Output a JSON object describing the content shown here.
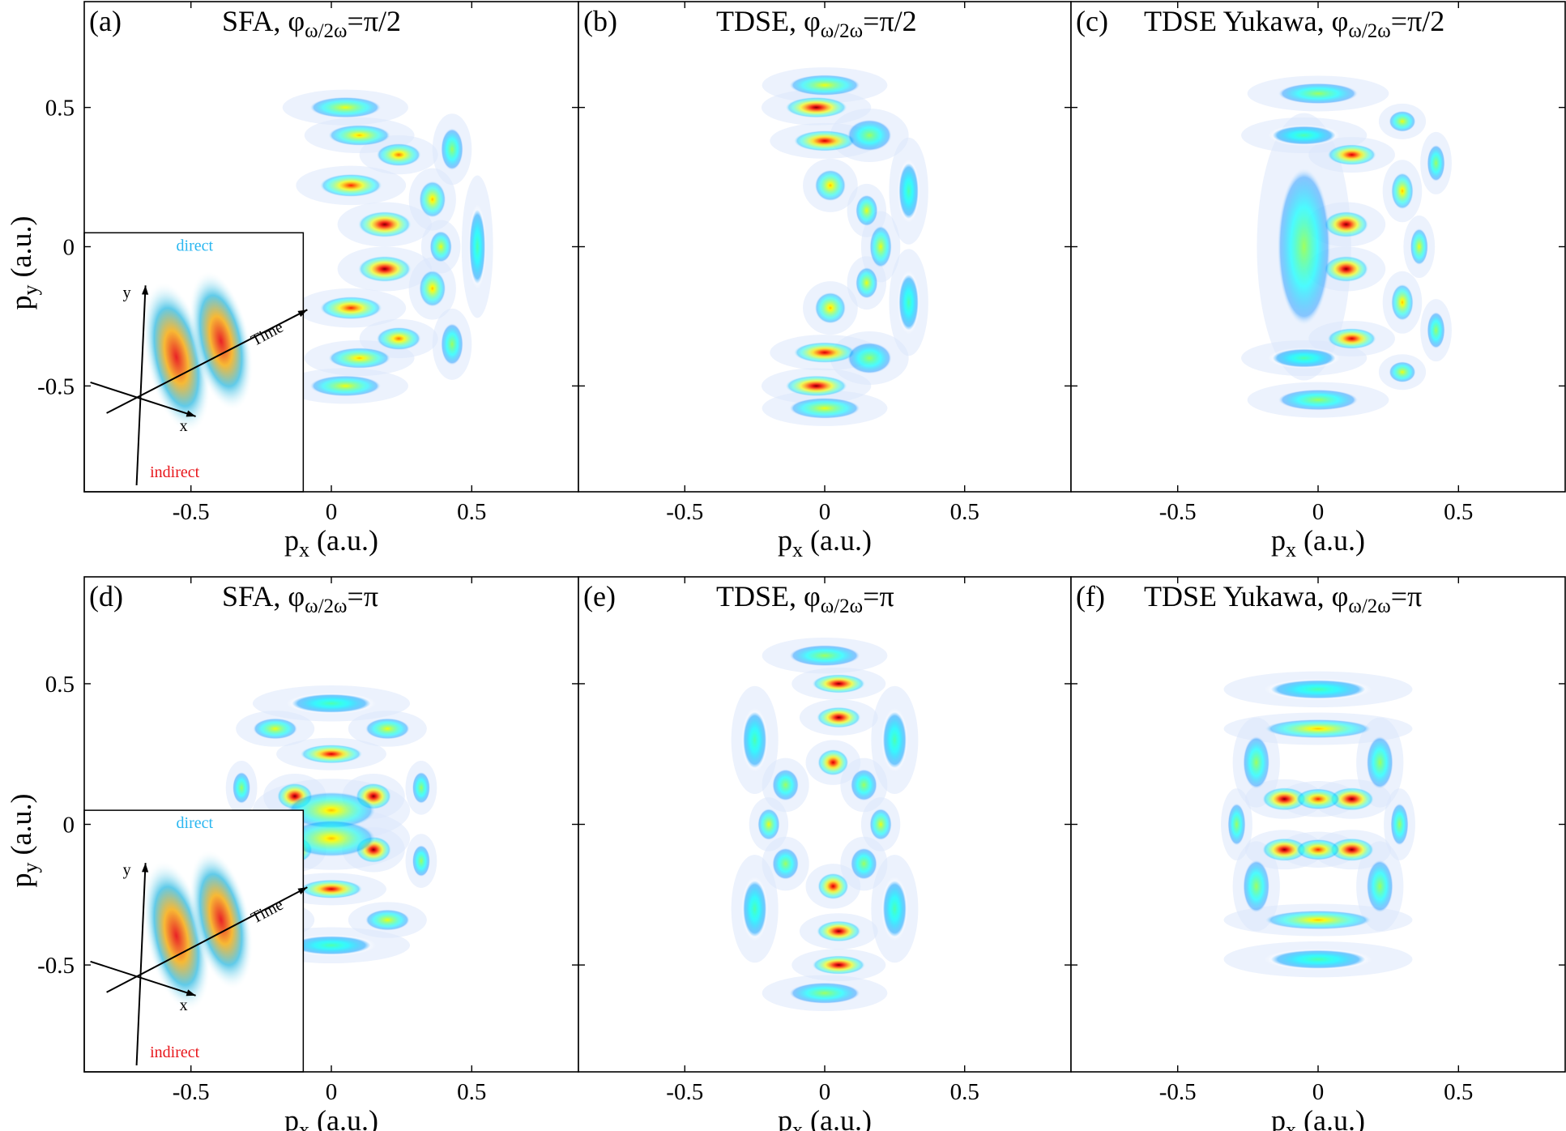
{
  "chart_data": {
    "type": "heatmap",
    "colormap": "jet",
    "grid": false,
    "xlim": [
      -0.88,
      0.88
    ],
    "ylim": [
      -0.88,
      0.88
    ],
    "x_ticks": [
      -0.5,
      0,
      0.5
    ],
    "y_ticks": [
      -0.5,
      0,
      0.5
    ],
    "x_tick_labels": [
      "-0.5",
      "0",
      "0.5"
    ],
    "y_tick_labels": [
      "-0.5",
      "0",
      "0.5"
    ],
    "xlabel_main": "p",
    "xlabel_sub": "x",
    "xlabel_unit": " (a.u.)",
    "ylabel_main": "p",
    "ylabel_sub": "y",
    "ylabel_unit": " (a.u.)",
    "inset": {
      "direct": "direct",
      "indirect": "indirect",
      "time": "Time",
      "x": "x",
      "y": "y",
      "direct_color": "#29b6f0",
      "indirect_color": "#e8161b"
    },
    "panels": [
      {
        "label": "(a)",
        "method": "SFA",
        "phase": "π/2",
        "inset": true,
        "blobs": [
          {
            "x": 0.19,
            "y": 0.08,
            "v": 1.0,
            "sx": 0.06,
            "sy": 0.025
          },
          {
            "x": 0.19,
            "y": -0.08,
            "v": 1.0,
            "sx": 0.06,
            "sy": 0.025
          },
          {
            "x": 0.07,
            "y": 0.22,
            "v": 0.75,
            "sx": 0.07,
            "sy": 0.022
          },
          {
            "x": 0.07,
            "y": -0.22,
            "v": 0.75,
            "sx": 0.07,
            "sy": 0.022
          },
          {
            "x": 0.24,
            "y": 0.33,
            "v": 0.7,
            "sx": 0.05,
            "sy": 0.022
          },
          {
            "x": 0.24,
            "y": -0.33,
            "v": 0.7,
            "sx": 0.05,
            "sy": 0.022
          },
          {
            "x": 0.36,
            "y": 0.17,
            "v": 0.55,
            "sx": 0.03,
            "sy": 0.035
          },
          {
            "x": 0.36,
            "y": -0.15,
            "v": 0.55,
            "sx": 0.03,
            "sy": 0.035
          },
          {
            "x": 0.39,
            "y": 0.0,
            "v": 0.45,
            "sx": 0.025,
            "sy": 0.03
          },
          {
            "x": 0.1,
            "y": 0.4,
            "v": 0.55,
            "sx": 0.07,
            "sy": 0.02
          },
          {
            "x": 0.1,
            "y": -0.4,
            "v": 0.55,
            "sx": 0.07,
            "sy": 0.02
          },
          {
            "x": 0.05,
            "y": 0.5,
            "v": 0.45,
            "sx": 0.08,
            "sy": 0.02
          },
          {
            "x": 0.05,
            "y": -0.5,
            "v": 0.45,
            "sx": 0.08,
            "sy": 0.02
          },
          {
            "x": 0.43,
            "y": 0.35,
            "v": 0.35,
            "sx": 0.025,
            "sy": 0.04
          },
          {
            "x": 0.43,
            "y": -0.35,
            "v": 0.35,
            "sx": 0.025,
            "sy": 0.04
          },
          {
            "x": 0.52,
            "y": 0.0,
            "v": 0.25,
            "sx": 0.02,
            "sy": 0.08
          }
        ]
      },
      {
        "label": "(b)",
        "method": "TDSE",
        "phase": "π/2",
        "inset": false,
        "blobs": [
          {
            "x": -0.03,
            "y": 0.5,
            "v": 1.0,
            "sx": 0.07,
            "sy": 0.02
          },
          {
            "x": -0.03,
            "y": -0.5,
            "v": 1.0,
            "sx": 0.07,
            "sy": 0.02
          },
          {
            "x": 0.0,
            "y": 0.38,
            "v": 0.9,
            "sx": 0.07,
            "sy": 0.02
          },
          {
            "x": 0.0,
            "y": -0.38,
            "v": 0.9,
            "sx": 0.07,
            "sy": 0.02
          },
          {
            "x": 0.02,
            "y": 0.22,
            "v": 0.6,
            "sx": 0.035,
            "sy": 0.03
          },
          {
            "x": 0.02,
            "y": -0.22,
            "v": 0.6,
            "sx": 0.035,
            "sy": 0.03
          },
          {
            "x": 0.15,
            "y": 0.13,
            "v": 0.5,
            "sx": 0.025,
            "sy": 0.03
          },
          {
            "x": 0.15,
            "y": -0.13,
            "v": 0.5,
            "sx": 0.025,
            "sy": 0.03
          },
          {
            "x": 0.2,
            "y": 0.0,
            "v": 0.45,
            "sx": 0.025,
            "sy": 0.04
          },
          {
            "x": 0.0,
            "y": 0.58,
            "v": 0.45,
            "sx": 0.08,
            "sy": 0.02
          },
          {
            "x": 0.0,
            "y": -0.58,
            "v": 0.45,
            "sx": 0.08,
            "sy": 0.02
          },
          {
            "x": 0.16,
            "y": 0.4,
            "v": 0.4,
            "sx": 0.05,
            "sy": 0.03
          },
          {
            "x": 0.16,
            "y": -0.4,
            "v": 0.4,
            "sx": 0.05,
            "sy": 0.03
          },
          {
            "x": 0.3,
            "y": 0.2,
            "v": 0.3,
            "sx": 0.025,
            "sy": 0.06
          },
          {
            "x": 0.3,
            "y": -0.2,
            "v": 0.3,
            "sx": 0.025,
            "sy": 0.06
          }
        ]
      },
      {
        "label": "(c)",
        "method": "TDSE Yukawa",
        "phase": "π/2",
        "inset": false,
        "blobs": [
          {
            "x": 0.1,
            "y": 0.08,
            "v": 1.0,
            "sx": 0.05,
            "sy": 0.025
          },
          {
            "x": 0.1,
            "y": -0.08,
            "v": 1.0,
            "sx": 0.05,
            "sy": 0.025
          },
          {
            "x": 0.12,
            "y": 0.33,
            "v": 0.85,
            "sx": 0.055,
            "sy": 0.02
          },
          {
            "x": 0.12,
            "y": -0.33,
            "v": 0.85,
            "sx": 0.055,
            "sy": 0.02
          },
          {
            "x": -0.05,
            "y": 0.0,
            "v": 0.35,
            "sx": 0.06,
            "sy": 0.15
          },
          {
            "x": 0.3,
            "y": 0.2,
            "v": 0.6,
            "sx": 0.025,
            "sy": 0.035
          },
          {
            "x": 0.3,
            "y": -0.2,
            "v": 0.6,
            "sx": 0.025,
            "sy": 0.035
          },
          {
            "x": 0.36,
            "y": 0.0,
            "v": 0.45,
            "sx": 0.02,
            "sy": 0.035
          },
          {
            "x": 0.3,
            "y": 0.45,
            "v": 0.45,
            "sx": 0.03,
            "sy": 0.02
          },
          {
            "x": 0.3,
            "y": -0.45,
            "v": 0.45,
            "sx": 0.03,
            "sy": 0.02
          },
          {
            "x": 0.0,
            "y": 0.55,
            "v": 0.4,
            "sx": 0.09,
            "sy": 0.02
          },
          {
            "x": 0.0,
            "y": -0.55,
            "v": 0.4,
            "sx": 0.09,
            "sy": 0.02
          },
          {
            "x": 0.42,
            "y": 0.3,
            "v": 0.35,
            "sx": 0.02,
            "sy": 0.035
          },
          {
            "x": 0.42,
            "y": -0.3,
            "v": 0.35,
            "sx": 0.02,
            "sy": 0.035
          },
          {
            "x": -0.05,
            "y": 0.4,
            "v": 0.3,
            "sx": 0.08,
            "sy": 0.02
          },
          {
            "x": -0.05,
            "y": -0.4,
            "v": 0.3,
            "sx": 0.08,
            "sy": 0.02
          }
        ]
      },
      {
        "label": "(d)",
        "method": "SFA",
        "phase": "π",
        "inset": true,
        "blobs": [
          {
            "x": -0.13,
            "y": 0.1,
            "v": 1.0,
            "sx": 0.04,
            "sy": 0.025
          },
          {
            "x": 0.15,
            "y": 0.1,
            "v": 1.0,
            "sx": 0.04,
            "sy": 0.025
          },
          {
            "x": -0.13,
            "y": -0.09,
            "v": 0.9,
            "sx": 0.04,
            "sy": 0.025
          },
          {
            "x": 0.15,
            "y": -0.09,
            "v": 1.0,
            "sx": 0.04,
            "sy": 0.025
          },
          {
            "x": 0.0,
            "y": 0.05,
            "v": 0.55,
            "sx": 0.1,
            "sy": 0.035
          },
          {
            "x": 0.0,
            "y": -0.05,
            "v": 0.55,
            "sx": 0.1,
            "sy": 0.035
          },
          {
            "x": 0.0,
            "y": 0.25,
            "v": 0.85,
            "sx": 0.07,
            "sy": 0.018
          },
          {
            "x": 0.0,
            "y": -0.23,
            "v": 0.85,
            "sx": 0.07,
            "sy": 0.018
          },
          {
            "x": -0.2,
            "y": 0.34,
            "v": 0.5,
            "sx": 0.05,
            "sy": 0.02
          },
          {
            "x": 0.2,
            "y": 0.34,
            "v": 0.5,
            "sx": 0.05,
            "sy": 0.02
          },
          {
            "x": -0.2,
            "y": -0.34,
            "v": 0.5,
            "sx": 0.05,
            "sy": 0.02
          },
          {
            "x": 0.2,
            "y": -0.34,
            "v": 0.5,
            "sx": 0.05,
            "sy": 0.02
          },
          {
            "x": 0.32,
            "y": 0.13,
            "v": 0.35,
            "sx": 0.02,
            "sy": 0.03
          },
          {
            "x": 0.32,
            "y": -0.13,
            "v": 0.35,
            "sx": 0.02,
            "sy": 0.03
          },
          {
            "x": -0.32,
            "y": 0.13,
            "v": 0.35,
            "sx": 0.02,
            "sy": 0.03
          },
          {
            "x": 0.0,
            "y": 0.43,
            "v": 0.25,
            "sx": 0.1,
            "sy": 0.02
          },
          {
            "x": 0.0,
            "y": -0.43,
            "v": 0.25,
            "sx": 0.1,
            "sy": 0.02
          }
        ]
      },
      {
        "label": "(e)",
        "method": "TDSE",
        "phase": "π",
        "inset": false,
        "blobs": [
          {
            "x": 0.05,
            "y": 0.5,
            "v": 1.0,
            "sx": 0.06,
            "sy": 0.018
          },
          {
            "x": 0.05,
            "y": -0.5,
            "v": 1.0,
            "sx": 0.06,
            "sy": 0.018
          },
          {
            "x": 0.05,
            "y": 0.38,
            "v": 0.95,
            "sx": 0.05,
            "sy": 0.02
          },
          {
            "x": 0.05,
            "y": -0.38,
            "v": 0.95,
            "sx": 0.05,
            "sy": 0.02
          },
          {
            "x": 0.03,
            "y": 0.22,
            "v": 0.85,
            "sx": 0.035,
            "sy": 0.025
          },
          {
            "x": 0.03,
            "y": -0.22,
            "v": 0.85,
            "sx": 0.035,
            "sy": 0.025
          },
          {
            "x": -0.2,
            "y": 0.0,
            "v": 0.45,
            "sx": 0.025,
            "sy": 0.03
          },
          {
            "x": 0.2,
            "y": 0.0,
            "v": 0.45,
            "sx": 0.025,
            "sy": 0.03
          },
          {
            "x": -0.14,
            "y": 0.14,
            "v": 0.35,
            "sx": 0.03,
            "sy": 0.03
          },
          {
            "x": 0.14,
            "y": 0.14,
            "v": 0.35,
            "sx": 0.03,
            "sy": 0.03
          },
          {
            "x": -0.14,
            "y": -0.14,
            "v": 0.35,
            "sx": 0.03,
            "sy": 0.03
          },
          {
            "x": 0.14,
            "y": -0.14,
            "v": 0.35,
            "sx": 0.03,
            "sy": 0.03
          },
          {
            "x": 0.0,
            "y": 0.6,
            "v": 0.4,
            "sx": 0.08,
            "sy": 0.02
          },
          {
            "x": 0.0,
            "y": -0.6,
            "v": 0.4,
            "sx": 0.08,
            "sy": 0.02
          },
          {
            "x": -0.25,
            "y": 0.3,
            "v": 0.25,
            "sx": 0.03,
            "sy": 0.06
          },
          {
            "x": 0.25,
            "y": 0.3,
            "v": 0.25,
            "sx": 0.03,
            "sy": 0.06
          },
          {
            "x": -0.25,
            "y": -0.3,
            "v": 0.25,
            "sx": 0.03,
            "sy": 0.06
          },
          {
            "x": 0.25,
            "y": -0.3,
            "v": 0.25,
            "sx": 0.03,
            "sy": 0.06
          }
        ]
      },
      {
        "label": "(f)",
        "method": "TDSE Yukawa",
        "phase": "π",
        "inset": false,
        "blobs": [
          {
            "x": -0.12,
            "y": 0.09,
            "v": 1.0,
            "sx": 0.05,
            "sy": 0.022
          },
          {
            "x": 0.12,
            "y": 0.09,
            "v": 1.0,
            "sx": 0.05,
            "sy": 0.022
          },
          {
            "x": -0.12,
            "y": -0.09,
            "v": 1.0,
            "sx": 0.05,
            "sy": 0.022
          },
          {
            "x": 0.12,
            "y": -0.09,
            "v": 1.0,
            "sx": 0.05,
            "sy": 0.022
          },
          {
            "x": 0.0,
            "y": 0.09,
            "v": 0.8,
            "sx": 0.05,
            "sy": 0.02
          },
          {
            "x": 0.0,
            "y": -0.09,
            "v": 0.8,
            "sx": 0.05,
            "sy": 0.02
          },
          {
            "x": 0.0,
            "y": 0.34,
            "v": 0.6,
            "sx": 0.12,
            "sy": 0.018
          },
          {
            "x": 0.0,
            "y": -0.34,
            "v": 0.6,
            "sx": 0.12,
            "sy": 0.018
          },
          {
            "x": -0.29,
            "y": 0.0,
            "v": 0.35,
            "sx": 0.02,
            "sy": 0.04
          },
          {
            "x": 0.29,
            "y": 0.0,
            "v": 0.35,
            "sx": 0.02,
            "sy": 0.04
          },
          {
            "x": -0.22,
            "y": 0.22,
            "v": 0.35,
            "sx": 0.03,
            "sy": 0.05
          },
          {
            "x": 0.22,
            "y": 0.22,
            "v": 0.35,
            "sx": 0.03,
            "sy": 0.05
          },
          {
            "x": -0.22,
            "y": -0.22,
            "v": 0.35,
            "sx": 0.03,
            "sy": 0.05
          },
          {
            "x": 0.22,
            "y": -0.22,
            "v": 0.35,
            "sx": 0.03,
            "sy": 0.05
          },
          {
            "x": 0.0,
            "y": 0.48,
            "v": 0.3,
            "sx": 0.12,
            "sy": 0.02
          },
          {
            "x": 0.0,
            "y": -0.48,
            "v": 0.3,
            "sx": 0.12,
            "sy": 0.02
          }
        ]
      }
    ]
  }
}
